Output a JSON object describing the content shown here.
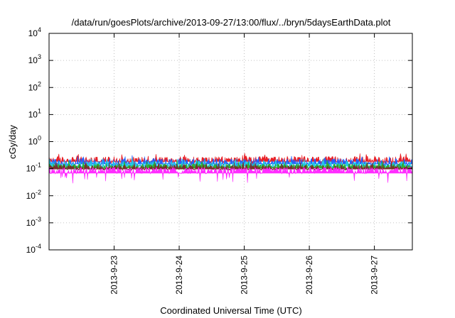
{
  "chart_data": {
    "type": "area",
    "title": "/data/run/goesPlots/archive/2013-09-27/13:00/flux/../bryn/5daysEarthData.plot",
    "xlabel": "Coordinated Universal Time (UTC)",
    "ylabel": "cGy/day",
    "y_scale": "log",
    "ylim": [
      0.0001,
      10000
    ],
    "xlim": [
      "2013-09-22T00:00",
      "2013-09-27T14:00"
    ],
    "y_ticks": [
      {
        "value": 0.0001,
        "base": "10",
        "exp": "-4"
      },
      {
        "value": 0.001,
        "base": "10",
        "exp": "-3"
      },
      {
        "value": 0.01,
        "base": "10",
        "exp": "-2"
      },
      {
        "value": 0.1,
        "base": "10",
        "exp": "-1"
      },
      {
        "value": 1,
        "base": "10",
        "exp": "0"
      },
      {
        "value": 10,
        "base": "10",
        "exp": "1"
      },
      {
        "value": 100,
        "base": "10",
        "exp": "2"
      },
      {
        "value": 1000,
        "base": "10",
        "exp": "3"
      },
      {
        "value": 10000,
        "base": "10",
        "exp": "4"
      }
    ],
    "x_ticks": [
      "2013-9-23",
      "2013-9-24",
      "2013-9-25",
      "2013-9-26",
      "2013-9-27"
    ],
    "x_tick_dates": [
      "2013-09-23",
      "2013-09-24",
      "2013-09-25",
      "2013-09-26",
      "2013-09-27"
    ],
    "grid": true,
    "legend": "none",
    "series": [
      {
        "color": "#e8161c",
        "typical": 0.21,
        "spread": 0.09
      },
      {
        "color": "#1f5fff",
        "typical": 0.17,
        "spread": 0.08
      },
      {
        "color": "#20c8e8",
        "typical": 0.14,
        "spread": 0.06
      },
      {
        "color": "#2ab02a",
        "typical": 0.12,
        "spread": 0.04
      },
      {
        "color": "#7a2a2a",
        "typical": 0.11,
        "spread": 0.03
      },
      {
        "color": "#ff22ff",
        "typical": 0.088,
        "spread": 0.03
      }
    ]
  }
}
